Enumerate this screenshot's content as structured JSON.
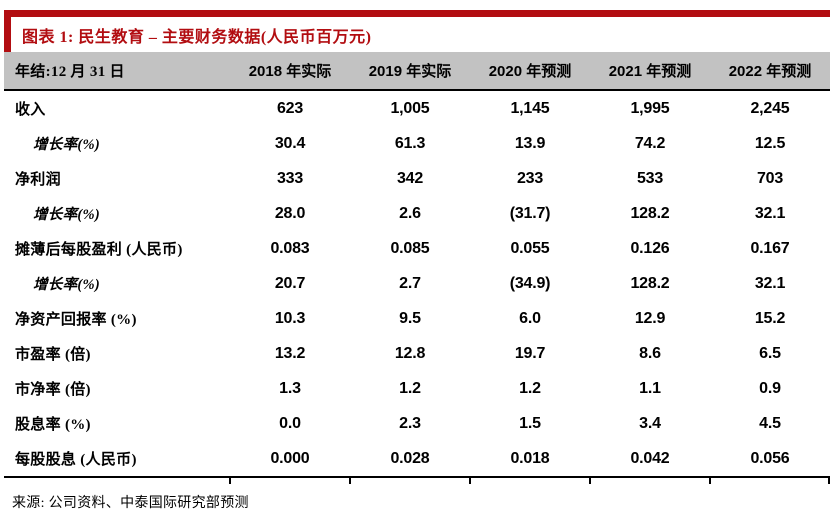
{
  "accent_color": "#B20D11",
  "header_bg_color": "#C2C2C2",
  "title": "图表 1: 民生教育 – 主要财务数据(人民币百万元)",
  "source": "来源: 公司资料、中泰国际研究部预测",
  "table": {
    "headers": [
      "年结:12 月 31 日",
      "2018 年实际",
      "2019 年实际",
      "2020 年预测",
      "2021 年预测",
      "2022 年预测"
    ],
    "rows": [
      {
        "label": "收入",
        "sub": false,
        "values": [
          "623",
          "1,005",
          "1,145",
          "1,995",
          "2,245"
        ]
      },
      {
        "label": "增长率(%)",
        "sub": true,
        "values": [
          "30.4",
          "61.3",
          "13.9",
          "74.2",
          "12.5"
        ]
      },
      {
        "label": "净利润",
        "sub": false,
        "values": [
          "333",
          "342",
          "233",
          "533",
          "703"
        ]
      },
      {
        "label": "增长率(%)",
        "sub": true,
        "values": [
          "28.0",
          "2.6",
          "(31.7)",
          "128.2",
          "32.1"
        ]
      },
      {
        "label": "摊薄后每股盈利 (人民币)",
        "sub": false,
        "values": [
          "0.083",
          "0.085",
          "0.055",
          "0.126",
          "0.167"
        ]
      },
      {
        "label": "增长率(%)",
        "sub": true,
        "values": [
          "20.7",
          "2.7",
          "(34.9)",
          "128.2",
          "32.1"
        ]
      },
      {
        "label": "净资产回报率 (%)",
        "sub": false,
        "values": [
          "10.3",
          "9.5",
          "6.0",
          "12.9",
          "15.2"
        ]
      },
      {
        "label": "市盈率 (倍)",
        "sub": false,
        "values": [
          "13.2",
          "12.8",
          "19.7",
          "8.6",
          "6.5"
        ]
      },
      {
        "label": "市净率 (倍)",
        "sub": false,
        "values": [
          "1.3",
          "1.2",
          "1.2",
          "1.1",
          "0.9"
        ]
      },
      {
        "label": "股息率 (%)",
        "sub": false,
        "values": [
          "0.0",
          "2.3",
          "1.5",
          "3.4",
          "4.5"
        ]
      },
      {
        "label": "每股股息 (人民币)",
        "sub": false,
        "values": [
          "0.000",
          "0.028",
          "0.018",
          "0.042",
          "0.056"
        ]
      }
    ]
  },
  "tick_positions": [
    225,
    345,
    465,
    585,
    705,
    824
  ]
}
